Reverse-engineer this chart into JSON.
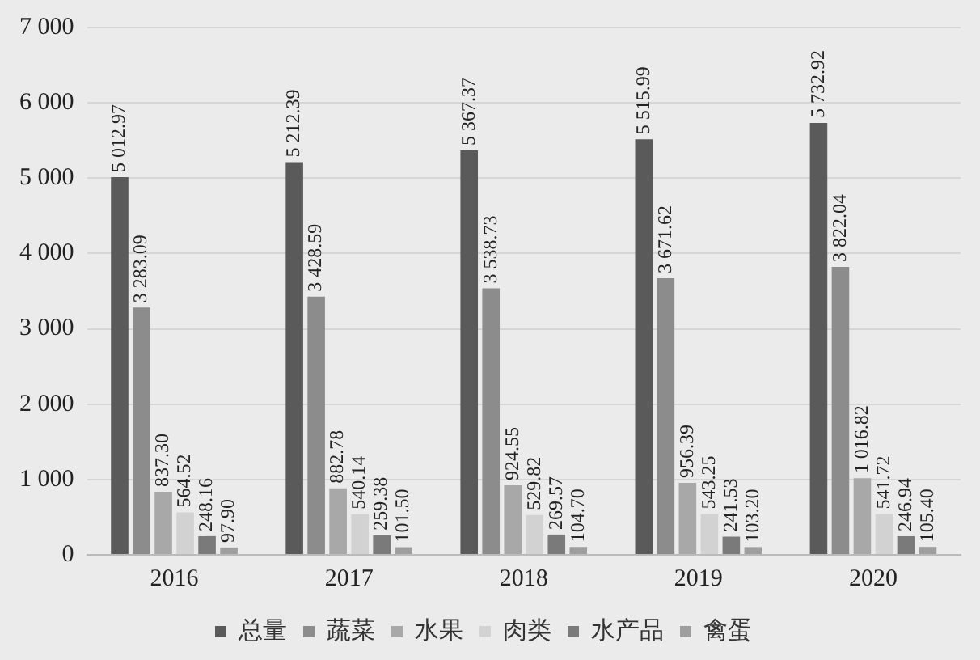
{
  "chart_data": {
    "type": "bar",
    "categories": [
      "2016",
      "2017",
      "2018",
      "2019",
      "2020"
    ],
    "series": [
      {
        "name": "总量",
        "color": "#5a5a5a",
        "values": [
          5012.97,
          5212.39,
          5367.37,
          5515.99,
          5732.92
        ],
        "value_labels": [
          "5 012.97",
          "5 212.39",
          "5 367.37",
          "5 515.99",
          "5 732.92"
        ]
      },
      {
        "name": "蔬菜",
        "color": "#8c8c8c",
        "values": [
          3283.09,
          3428.59,
          3538.73,
          3671.62,
          3822.04
        ],
        "value_labels": [
          "3 283.09",
          "3 428.59",
          "3 538.73",
          "3 671.62",
          "3 822.04"
        ]
      },
      {
        "name": "水果",
        "color": "#a8a8a8",
        "values": [
          837.3,
          882.78,
          924.55,
          956.39,
          1016.82
        ],
        "value_labels": [
          "837.30",
          "882.78",
          "924.55",
          "956.39",
          "1 016.82"
        ]
      },
      {
        "name": "肉类",
        "color": "#d2d2d2",
        "values": [
          564.52,
          540.14,
          529.82,
          543.25,
          541.72
        ],
        "value_labels": [
          "564.52",
          "540.14",
          "529.82",
          "543.25",
          "541.72"
        ]
      },
      {
        "name": "水产品",
        "color": "#7a7a7a",
        "values": [
          248.16,
          259.38,
          269.57,
          241.53,
          246.94
        ],
        "value_labels": [
          "248.16",
          "259.38",
          "269.57",
          "241.53",
          "246.94"
        ]
      },
      {
        "name": "禽蛋",
        "color": "#9e9e9e",
        "values": [
          97.9,
          101.5,
          104.7,
          103.2,
          105.4
        ],
        "value_labels": [
          "97.90",
          "101.50",
          "104.70",
          "103.20",
          "105.40"
        ]
      }
    ],
    "ylim": [
      0,
      7000
    ],
    "yticks": [
      0,
      {
        "value": 1000,
        "label": "1 000"
      },
      {
        "value": 2000,
        "label": "2 000"
      },
      {
        "value": 3000,
        "label": "3 000"
      },
      {
        "value": 4000,
        "label": "4 000"
      },
      {
        "value": 5000,
        "label": "5 000"
      },
      {
        "value": 6000,
        "label": "6 000"
      },
      {
        "value": 7000,
        "label": "7 000"
      }
    ],
    "grid": "y",
    "legend": "bottom"
  }
}
